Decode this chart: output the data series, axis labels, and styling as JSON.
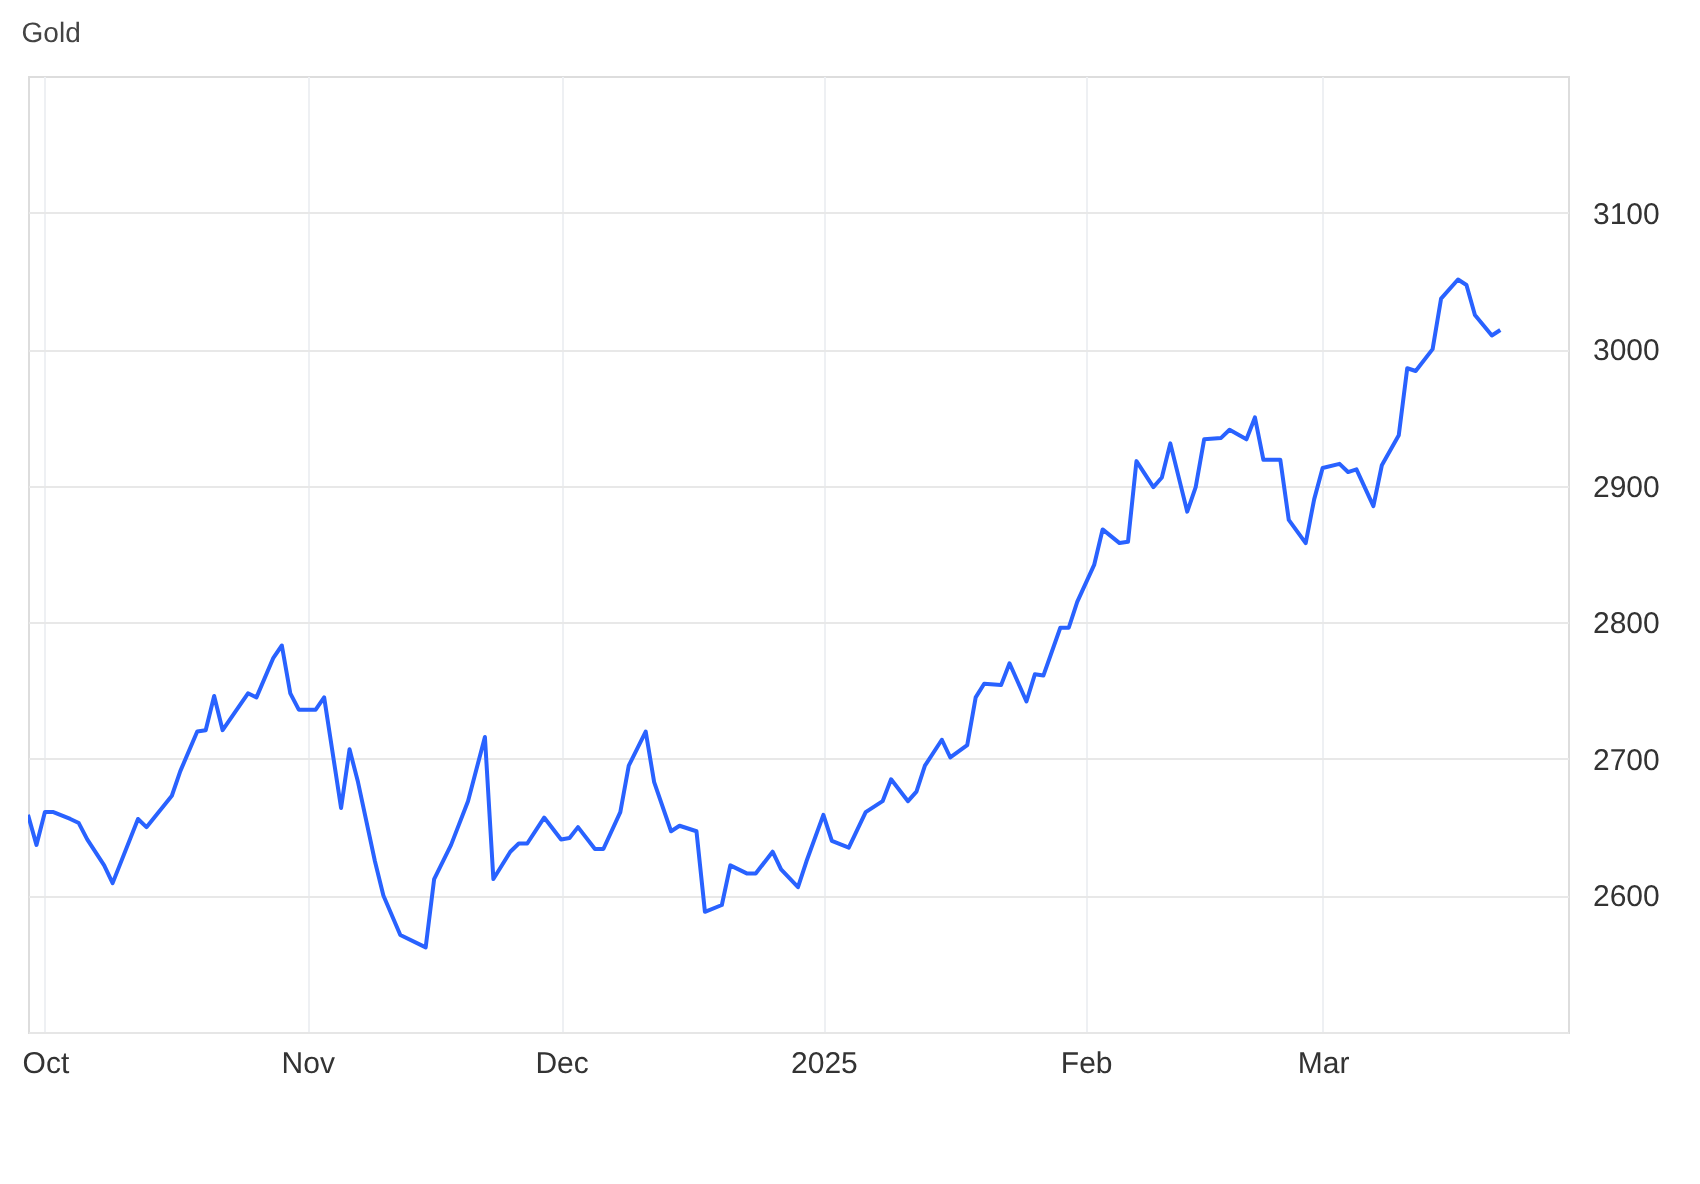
{
  "chart_data": {
    "type": "line",
    "title": "Gold",
    "x": [
      "2024-09-29",
      "2024-09-30",
      "2024-10-01",
      "2024-10-02",
      "2024-10-04",
      "2024-10-05",
      "2024-10-06",
      "2024-10-08",
      "2024-10-09",
      "2024-10-12",
      "2024-10-13",
      "2024-10-16",
      "2024-10-17",
      "2024-10-19",
      "2024-10-20",
      "2024-10-21",
      "2024-10-22",
      "2024-10-25",
      "2024-10-26",
      "2024-10-28",
      "2024-10-29",
      "2024-10-30",
      "2024-10-31",
      "2024-11-02",
      "2024-11-03",
      "2024-11-05",
      "2024-11-06",
      "2024-11-07",
      "2024-11-09",
      "2024-11-10",
      "2024-11-12",
      "2024-11-15",
      "2024-11-16",
      "2024-11-18",
      "2024-11-20",
      "2024-11-22",
      "2024-11-23",
      "2024-11-25",
      "2024-11-26",
      "2024-11-27",
      "2024-11-29",
      "2024-12-01",
      "2024-12-02",
      "2024-12-03",
      "2024-12-05",
      "2024-12-06",
      "2024-12-08",
      "2024-12-09",
      "2024-12-11",
      "2024-12-12",
      "2024-12-14",
      "2024-12-15",
      "2024-12-17",
      "2024-12-18",
      "2024-12-20",
      "2024-12-21",
      "2024-12-23",
      "2024-12-24",
      "2024-12-26",
      "2024-12-27",
      "2024-12-29",
      "2024-12-30",
      "2025-01-01",
      "2025-01-02",
      "2025-01-04",
      "2025-01-05",
      "2025-01-06",
      "2025-01-08",
      "2025-01-09",
      "2025-01-11",
      "2025-01-12",
      "2025-01-13",
      "2025-01-15",
      "2025-01-16",
      "2025-01-18",
      "2025-01-19",
      "2025-01-20",
      "2025-01-22",
      "2025-01-23",
      "2025-01-25",
      "2025-01-26",
      "2025-01-27",
      "2025-01-29",
      "2025-01-30",
      "2025-01-31",
      "2025-02-02",
      "2025-02-03",
      "2025-02-05",
      "2025-02-06",
      "2025-02-07",
      "2025-02-09",
      "2025-02-10",
      "2025-02-11",
      "2025-02-13",
      "2025-02-14",
      "2025-02-15",
      "2025-02-17",
      "2025-02-18",
      "2025-02-20",
      "2025-02-21",
      "2025-02-22",
      "2025-02-24",
      "2025-02-25",
      "2025-02-27",
      "2025-02-28",
      "2025-03-01",
      "2025-03-03",
      "2025-03-04",
      "2025-03-05",
      "2025-03-07",
      "2025-03-08",
      "2025-03-10",
      "2025-03-11",
      "2025-03-12",
      "2025-03-14",
      "2025-03-15",
      "2025-03-17",
      "2025-03-18",
      "2025-03-19",
      "2025-03-21",
      "2025-03-22"
    ],
    "series": [
      {
        "color": "#2962ff",
        "values": [
          2659,
          2637,
          2661,
          2661,
          2656,
          2653,
          2641,
          2622,
          2609,
          2656,
          2650,
          2673,
          2691,
          2720,
          2721,
          2746,
          2721,
          2748,
          2745,
          2774,
          2783,
          2748,
          2736,
          2736,
          2745,
          2664,
          2707,
          2683,
          2625,
          2600,
          2571,
          2562,
          2612,
          2637,
          2669,
          2716,
          2612,
          2632,
          2638,
          2638,
          2657,
          2641,
          2642,
          2650,
          2634,
          2634,
          2661,
          2695,
          2720,
          2683,
          2647,
          2651,
          2647,
          2588,
          2593,
          2622,
          2616,
          2616,
          2632,
          2619,
          2606,
          2625,
          2659,
          2640,
          2635,
          2648,
          2661,
          2669,
          2685,
          2669,
          2676,
          2695,
          2714,
          2701,
          2710,
          2745,
          2755,
          2754,
          2770,
          2742,
          2762,
          2761,
          2796,
          2796,
          2815,
          2842,
          2868,
          2858,
          2859,
          2918,
          2899,
          2906,
          2931,
          2881,
          2899,
          2934,
          2935,
          2941,
          2934,
          2950,
          2919,
          2919,
          2875,
          2858,
          2890,
          2913,
          2916,
          2910,
          2912,
          2885,
          2915,
          2937,
          2986,
          2984,
          3000,
          3037,
          3051,
          3047,
          3025,
          3010,
          3014
        ]
      }
    ],
    "xlim": [
      "2024-09-29",
      "2025-03-30"
    ],
    "xticks": [
      {
        "value": "2024-10-01",
        "label": "Oct"
      },
      {
        "value": "2024-11-01",
        "label": "Nov"
      },
      {
        "value": "2024-12-01",
        "label": "Dec"
      },
      {
        "value": "2025-01-01",
        "label": "2025"
      },
      {
        "value": "2025-02-01",
        "label": "Feb"
      },
      {
        "value": "2025-03-01",
        "label": "Mar"
      }
    ],
    "ylim": [
      2500,
      3200
    ],
    "yticks": [
      2600,
      2700,
      2800,
      2900,
      3000,
      3100
    ],
    "grid": true,
    "marker": "none",
    "line_style": "solid"
  }
}
